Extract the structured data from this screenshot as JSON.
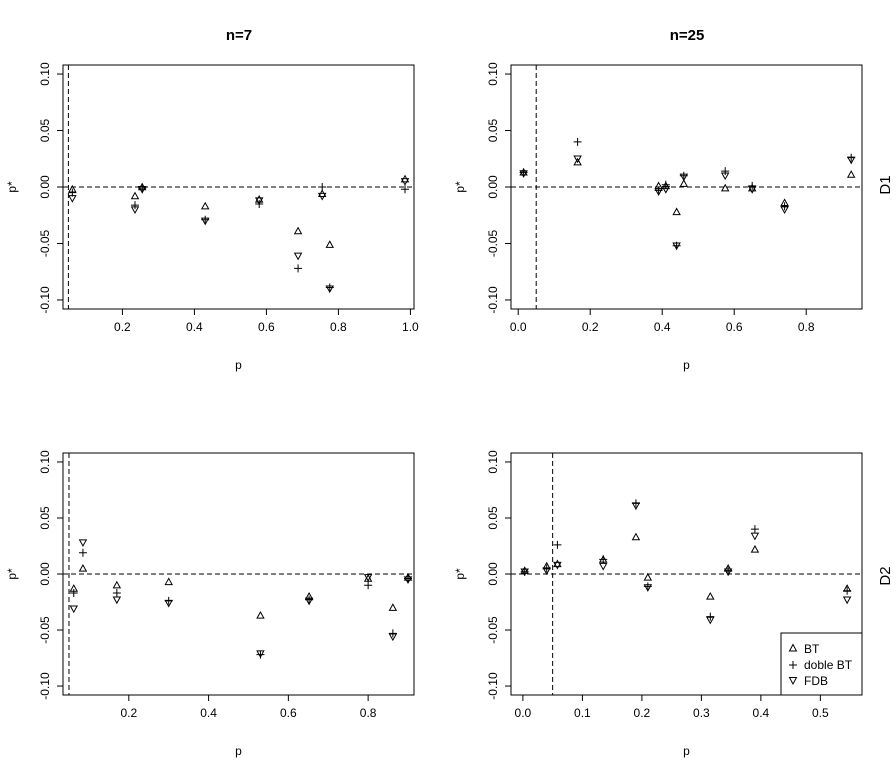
{
  "figure": {
    "col_titles": [
      "n=7",
      "n=25"
    ],
    "row_labels": [
      "D1",
      "D2"
    ]
  },
  "legend": {
    "placement": "bottom-right of bottom-right panel",
    "entries": [
      {
        "label": "BT",
        "marker": "triangle-up"
      },
      {
        "label": "doble BT",
        "marker": "plus"
      },
      {
        "label": "FDB",
        "marker": "triangle-down"
      }
    ]
  },
  "chart_data": [
    {
      "type": "scatter",
      "title": "n=7",
      "row": "D1",
      "xlabel": "p",
      "ylabel": "p*",
      "xlim": [
        0.035,
        1.01
      ],
      "ylim": [
        -0.108,
        0.108
      ],
      "xticks": [
        0.2,
        0.4,
        0.6,
        0.8,
        1.0
      ],
      "xtick_labels": [
        "0.2",
        "0.4",
        "0.6",
        "0.8",
        "1.0"
      ],
      "yticks": [
        -0.1,
        -0.05,
        0.0,
        0.05,
        0.1
      ],
      "ytick_labels": [
        "-0.10",
        "-0.05",
        "0.00",
        "0.05",
        "0.10"
      ],
      "hline": 0.0,
      "vline": 0.05,
      "series": [
        {
          "name": "BT",
          "marker": "triangle-up",
          "x": [
            0.061,
            0.235,
            0.255,
            0.43,
            0.58,
            0.688,
            0.755,
            0.776,
            0.985
          ],
          "y": [
            -0.002,
            -0.008,
            0.0,
            -0.017,
            -0.011,
            -0.039,
            -0.006,
            -0.051,
            0.007
          ]
        },
        {
          "name": "doble BT",
          "marker": "plus",
          "x": [
            0.061,
            0.235,
            0.255,
            0.43,
            0.58,
            0.688,
            0.755,
            0.776,
            0.985
          ],
          "y": [
            -0.005,
            -0.016,
            -0.001,
            -0.029,
            -0.015,
            -0.072,
            0.0,
            -0.089,
            -0.002
          ]
        },
        {
          "name": "FDB",
          "marker": "triangle-down",
          "x": [
            0.061,
            0.235,
            0.255,
            0.43,
            0.58,
            0.688,
            0.755,
            0.776,
            0.985
          ],
          "y": [
            -0.01,
            -0.02,
            -0.002,
            -0.03,
            -0.012,
            -0.061,
            -0.008,
            -0.09,
            0.005
          ]
        }
      ]
    },
    {
      "type": "scatter",
      "title": "n=25",
      "row": "D1",
      "xlabel": "p",
      "ylabel": "p*",
      "xlim": [
        -0.02,
        0.955
      ],
      "ylim": [
        -0.108,
        0.108
      ],
      "xticks": [
        0.0,
        0.2,
        0.4,
        0.6,
        0.8
      ],
      "xtick_labels": [
        "0.0",
        "0.2",
        "0.4",
        "0.6",
        "0.8"
      ],
      "yticks": [
        -0.1,
        -0.05,
        0.0,
        0.05,
        0.1
      ],
      "ytick_labels": [
        "-0.10",
        "-0.05",
        "0.00",
        "0.05",
        "0.10"
      ],
      "hline": 0.0,
      "vline": 0.05,
      "series": [
        {
          "name": "BT",
          "marker": "triangle-up",
          "x": [
            0.015,
            0.165,
            0.39,
            0.41,
            0.44,
            0.46,
            0.575,
            0.65,
            0.74,
            0.925
          ],
          "y": [
            0.013,
            0.022,
            0.001,
            0.001,
            -0.022,
            0.003,
            -0.001,
            -0.001,
            -0.014,
            0.011
          ]
        },
        {
          "name": "doble BT",
          "marker": "plus",
          "x": [
            0.015,
            0.165,
            0.39,
            0.41,
            0.44,
            0.46,
            0.575,
            0.65,
            0.74,
            0.925
          ],
          "y": [
            0.013,
            0.04,
            -0.003,
            0.002,
            -0.052,
            0.01,
            0.014,
            0.001,
            -0.017,
            0.026
          ]
        },
        {
          "name": "FDB",
          "marker": "triangle-down",
          "x": [
            0.015,
            0.165,
            0.39,
            0.41,
            0.44,
            0.46,
            0.575,
            0.65,
            0.74,
            0.925
          ],
          "y": [
            0.012,
            0.025,
            -0.004,
            -0.002,
            -0.052,
            0.009,
            0.01,
            -0.002,
            -0.02,
            0.024
          ]
        }
      ]
    },
    {
      "type": "scatter",
      "title": "",
      "row": "D2",
      "xlabel": "p",
      "ylabel": "p*",
      "xlim": [
        0.035,
        0.915
      ],
      "ylim": [
        -0.108,
        0.108
      ],
      "xticks": [
        0.2,
        0.4,
        0.6,
        0.8
      ],
      "xtick_labels": [
        "0.2",
        "0.4",
        "0.6",
        "0.8"
      ],
      "yticks": [
        -0.1,
        -0.05,
        0.0,
        0.05,
        0.1
      ],
      "ytick_labels": [
        "-0.10",
        "-0.05",
        "0.00",
        "0.05",
        "0.10"
      ],
      "hline": 0.0,
      "vline": 0.05,
      "series": [
        {
          "name": "BT",
          "marker": "triangle-up",
          "x": [
            0.062,
            0.085,
            0.17,
            0.3,
            0.53,
            0.652,
            0.8,
            0.862,
            0.9
          ],
          "y": [
            -0.013,
            0.005,
            -0.01,
            -0.007,
            -0.037,
            -0.02,
            -0.004,
            -0.03,
            -0.003
          ]
        },
        {
          "name": "doble BT",
          "marker": "plus",
          "x": [
            0.062,
            0.085,
            0.17,
            0.3,
            0.53,
            0.652,
            0.8,
            0.862,
            0.9
          ],
          "y": [
            -0.017,
            0.019,
            -0.017,
            -0.024,
            -0.072,
            -0.023,
            -0.01,
            -0.053,
            -0.004
          ]
        },
        {
          "name": "FDB",
          "marker": "triangle-down",
          "x": [
            0.062,
            0.085,
            0.17,
            0.3,
            0.53,
            0.652,
            0.8,
            0.862,
            0.9
          ],
          "y": [
            -0.031,
            0.028,
            -0.023,
            -0.026,
            -0.071,
            -0.024,
            -0.003,
            -0.056,
            -0.005
          ]
        }
      ]
    },
    {
      "type": "scatter",
      "title": "",
      "row": "D2",
      "xlabel": "p",
      "ylabel": "p*",
      "xlim": [
        -0.02,
        0.57
      ],
      "ylim": [
        -0.108,
        0.108
      ],
      "xticks": [
        0.0,
        0.1,
        0.2,
        0.3,
        0.4,
        0.5
      ],
      "xtick_labels": [
        "0.0",
        "0.1",
        "0.2",
        "0.3",
        "0.4",
        "0.5"
      ],
      "yticks": [
        -0.1,
        -0.05,
        0.0,
        0.05,
        0.1
      ],
      "ytick_labels": [
        "-0.10",
        "-0.05",
        "0.00",
        "0.05",
        "0.10"
      ],
      "hline": 0.0,
      "vline": 0.05,
      "series": [
        {
          "name": "BT",
          "marker": "triangle-up",
          "x": [
            0.003,
            0.04,
            0.058,
            0.135,
            0.19,
            0.21,
            0.315,
            0.345,
            0.39,
            0.545
          ],
          "y": [
            0.003,
            0.007,
            0.009,
            0.013,
            0.033,
            -0.003,
            -0.02,
            0.005,
            0.022,
            -0.013
          ]
        },
        {
          "name": "doble BT",
          "marker": "plus",
          "x": [
            0.003,
            0.04,
            0.058,
            0.135,
            0.19,
            0.21,
            0.315,
            0.345,
            0.39,
            0.545
          ],
          "y": [
            0.002,
            0.005,
            0.026,
            0.013,
            0.063,
            -0.011,
            -0.038,
            0.003,
            0.04,
            -0.015
          ]
        },
        {
          "name": "FDB",
          "marker": "triangle-down",
          "x": [
            0.003,
            0.04,
            0.058,
            0.135,
            0.19,
            0.21,
            0.315,
            0.345,
            0.39,
            0.545
          ],
          "y": [
            0.002,
            0.003,
            0.008,
            0.007,
            0.061,
            -0.012,
            -0.041,
            0.002,
            0.034,
            -0.023
          ]
        }
      ]
    }
  ]
}
